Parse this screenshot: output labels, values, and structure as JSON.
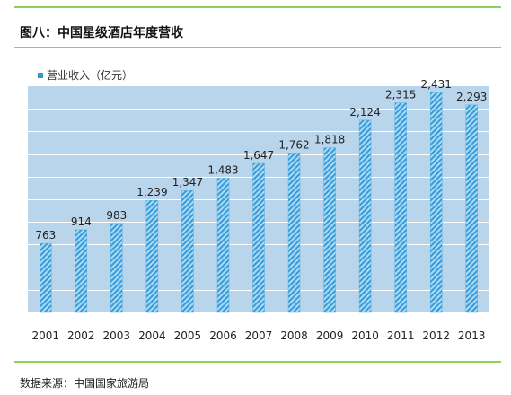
{
  "title": "图八：中国星级酒店年度营收",
  "source": "数据来源：中国国家旅游局",
  "colors": {
    "plot_bg": "#b9d5ec",
    "bar_stripe_light": "#a9dcf7",
    "bar_stripe_dark": "#3a9ad6",
    "accent_line": "#92cf5a"
  },
  "chart_data": {
    "type": "bar",
    "categories": [
      "2001",
      "2002",
      "2003",
      "2004",
      "2005",
      "2006",
      "2007",
      "2008",
      "2009",
      "2010",
      "2011",
      "2012",
      "2013"
    ],
    "series": [
      {
        "name": "营业收入（亿元）",
        "values": [
          763,
          914,
          983,
          1239,
          1347,
          1483,
          1647,
          1762,
          1818,
          2124,
          2315,
          2431,
          2293
        ]
      }
    ],
    "data_labels": [
      "763",
      "914",
      "983",
      "1,239",
      "1,347",
      "1,483",
      "1,647",
      "1,762",
      "1,818",
      "2,124",
      "2,315",
      "2,431",
      "2,293"
    ],
    "ylim": [
      0,
      2500
    ],
    "y_gridline_step": 250,
    "grid": true,
    "legend": "top-left"
  }
}
